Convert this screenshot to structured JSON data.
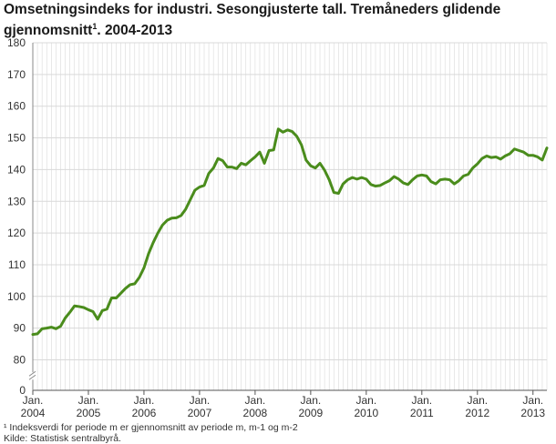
{
  "title_main": "Omsetningsindeks for industri. Sesongjusterte tall. Tremåneders glidende gjennomsnitt",
  "title_sup": "1",
  "title_tail": ". 2004-2013",
  "footnote_1": "¹ Indeksverdi for periode m er gjennomsnitt av periode m, m-1 og m-2",
  "source": "Kilde: Statistisk sentralbyrå.",
  "colors": {
    "line": "#4a8c1c",
    "grid": "#d9d9d9",
    "axis": "#888888"
  },
  "chart_data": {
    "type": "line",
    "ylim": [
      0,
      180
    ],
    "yticks": [
      0,
      80,
      90,
      100,
      110,
      120,
      130,
      140,
      150,
      160,
      170,
      180
    ],
    "y_axis_break": true,
    "x_tick_month_label": "Jan.",
    "x_tick_years": [
      "2004",
      "2005",
      "2006",
      "2007",
      "2008",
      "2009",
      "2010",
      "2011",
      "2012",
      "2013"
    ],
    "start": "2004-01",
    "frequency": "monthly",
    "series": [
      {
        "values": [
          88,
          88.2,
          89.8,
          90,
          90.3,
          89.8,
          90.6,
          93.2,
          95,
          97,
          96.8,
          96.5,
          95.8,
          95.2,
          92.8,
          95.5,
          96,
          99.5,
          99.5,
          101,
          102.5,
          103.7,
          104,
          106,
          109,
          113.5,
          117,
          120,
          122.5,
          124,
          124.7,
          124.8,
          125.5,
          127.5,
          130.5,
          133.5,
          134.5,
          135,
          138.8,
          140.5,
          143.5,
          142.8,
          140.8,
          140.8,
          140.3,
          142,
          141.5,
          142.8,
          144,
          145.5,
          142,
          146,
          146.2,
          152.8,
          151.8,
          152.5,
          152,
          150.5,
          147.8,
          143,
          141.2,
          140.5,
          142,
          139.8,
          136.8,
          132.8,
          132.5,
          135.5,
          136.8,
          137.5,
          137,
          137.5,
          137,
          135.3,
          134.8,
          135,
          135.8,
          136.5,
          137.8,
          137,
          135.8,
          135.3,
          136.8,
          138,
          138.3,
          138,
          136.2,
          135.5,
          136.8,
          137,
          136.8,
          135.5,
          136.5,
          138,
          138.5,
          140.5,
          141.8,
          143.5,
          144.3,
          143.8,
          144,
          143.3,
          144.3,
          145,
          146.5,
          146,
          145.5,
          144.5,
          144.5,
          144,
          143,
          146.8
        ]
      }
    ]
  }
}
